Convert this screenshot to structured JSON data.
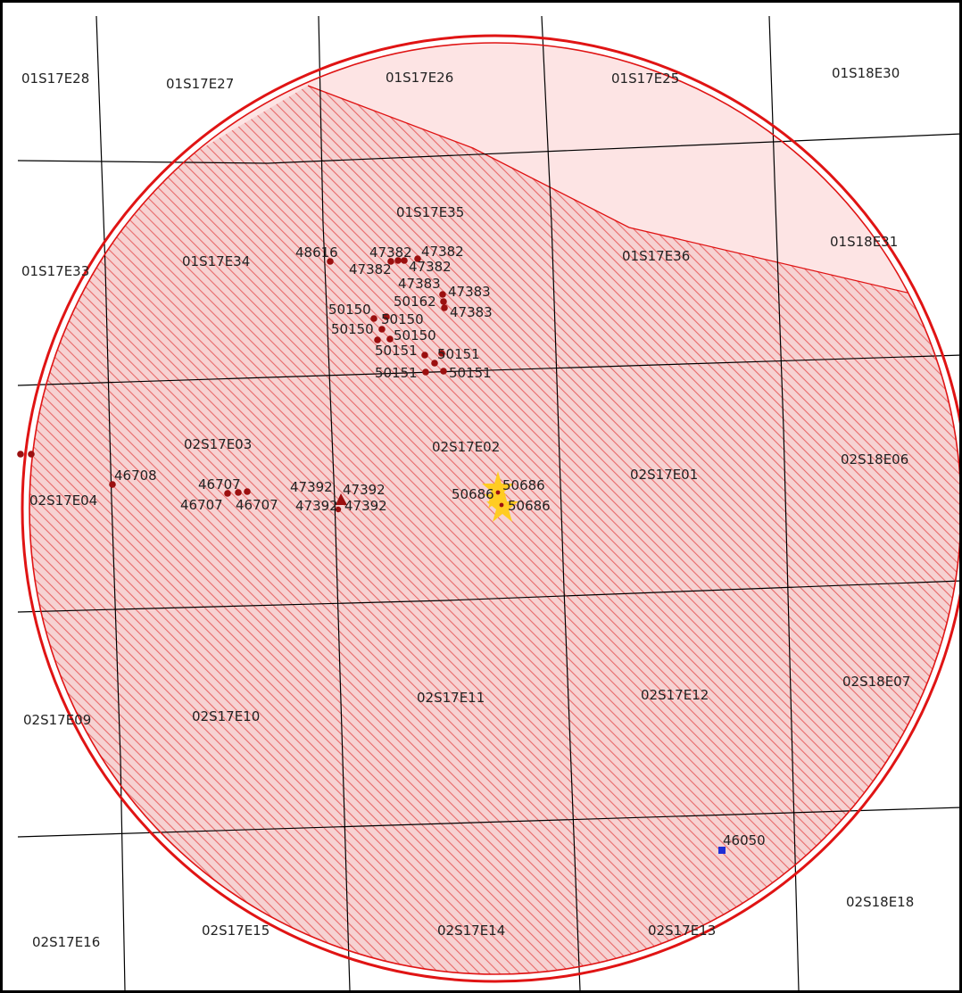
{
  "colors": {
    "buffer_outline": "#e01414",
    "buffer_fill_light": "#fde4e4",
    "hatch_fill": "#f6d2d2",
    "hatch_line": "#e86a6a",
    "grid": "#000000",
    "well_dot": "#9b0f0f",
    "star": "#ffcc22",
    "blue_marker": "#1f2fd6"
  },
  "sections": [
    {
      "id": "01S17E28",
      "label": "01S17E28"
    },
    {
      "id": "01S17E27",
      "label": "01S17E27"
    },
    {
      "id": "01S17E26",
      "label": "01S17E26"
    },
    {
      "id": "01S17E25",
      "label": "01S17E25"
    },
    {
      "id": "01S18E30",
      "label": "01S18E30"
    },
    {
      "id": "01S17E35",
      "label": "01S17E35"
    },
    {
      "id": "01S18E31",
      "label": "01S18E31"
    },
    {
      "id": "01S17E33",
      "label": "01S17E33"
    },
    {
      "id": "01S17E34",
      "label": "01S17E34"
    },
    {
      "id": "01S17E36",
      "label": "01S17E36"
    },
    {
      "id": "02S17E03",
      "label": "02S17E03"
    },
    {
      "id": "02S17E02",
      "label": "02S17E02"
    },
    {
      "id": "02S17E01",
      "label": "02S17E01"
    },
    {
      "id": "02S18E06",
      "label": "02S18E06"
    },
    {
      "id": "02S17E04",
      "label": "02S17E04"
    },
    {
      "id": "02S17E09",
      "label": "02S17E09"
    },
    {
      "id": "02S17E10",
      "label": "02S17E10"
    },
    {
      "id": "02S17E11",
      "label": "02S17E11"
    },
    {
      "id": "02S17E12",
      "label": "02S17E12"
    },
    {
      "id": "02S18E07",
      "label": "02S18E07"
    },
    {
      "id": "02S17E16",
      "label": "02S17E16"
    },
    {
      "id": "02S17E15",
      "label": "02S17E15"
    },
    {
      "id": "02S17E14",
      "label": "02S17E14"
    },
    {
      "id": "02S17E13",
      "label": "02S17E13"
    },
    {
      "id": "02S18E18",
      "label": "02S18E18"
    }
  ],
  "wells": [
    {
      "id": "48616",
      "label": "48616"
    },
    {
      "id": "47382-a",
      "label": "47382"
    },
    {
      "id": "47382-b",
      "label": "47382"
    },
    {
      "id": "47382-c",
      "label": "47382"
    },
    {
      "id": "47382-d",
      "label": "47382"
    },
    {
      "id": "47383-a",
      "label": "47383"
    },
    {
      "id": "47383-b",
      "label": "47383"
    },
    {
      "id": "47383-c",
      "label": "47383"
    },
    {
      "id": "50162",
      "label": "50162"
    },
    {
      "id": "50150-a",
      "label": "50150"
    },
    {
      "id": "50150-b",
      "label": "50150"
    },
    {
      "id": "50150-c",
      "label": "50150"
    },
    {
      "id": "50150-d",
      "label": "50150"
    },
    {
      "id": "50151-a",
      "label": "50151"
    },
    {
      "id": "50151-b",
      "label": "50151"
    },
    {
      "id": "50151-c",
      "label": "50151"
    },
    {
      "id": "50151-d",
      "label": "50151"
    },
    {
      "id": "46708",
      "label": "46708"
    },
    {
      "id": "46707-a",
      "label": "46707"
    },
    {
      "id": "46707-b",
      "label": "46707"
    },
    {
      "id": "46707-c",
      "label": "46707"
    },
    {
      "id": "47392-a",
      "label": "47392"
    },
    {
      "id": "47392-b",
      "label": "47392"
    },
    {
      "id": "47392-c",
      "label": "47392"
    },
    {
      "id": "47392-d",
      "label": "47392"
    },
    {
      "id": "50686-a",
      "label": "50686"
    },
    {
      "id": "50686-b",
      "label": "50686"
    },
    {
      "id": "50686-c",
      "label": "50686"
    },
    {
      "id": "46050",
      "label": "46050"
    }
  ]
}
